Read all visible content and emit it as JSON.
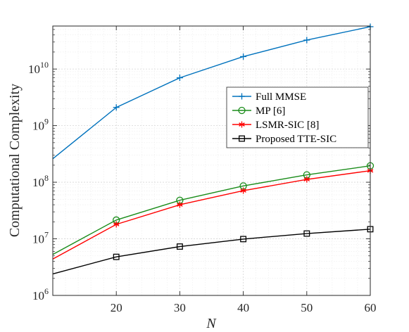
{
  "chart_data": {
    "type": "line",
    "xlabel": "N",
    "ylabel": "Computational Complexity",
    "xlim": [
      10,
      60
    ],
    "ylim_log10": [
      6,
      10.76
    ],
    "yscale": "log",
    "xticks": [
      20,
      30,
      40,
      50,
      60
    ],
    "xtick_labels": [
      "20",
      "30",
      "40",
      "50",
      "60"
    ],
    "yticks_log10": [
      6,
      7,
      8,
      9,
      10
    ],
    "ytick_labels": [
      {
        "base": "10",
        "exp": "6"
      },
      {
        "base": "10",
        "exp": "7"
      },
      {
        "base": "10",
        "exp": "8"
      },
      {
        "base": "10",
        "exp": "9"
      },
      {
        "base": "10",
        "exp": "10"
      }
    ],
    "grid": true,
    "legend_position": "center-right",
    "series": [
      {
        "name": "Full MMSE",
        "color": "#0072BD",
        "marker": "plus",
        "x": [
          10,
          20,
          30,
          40,
          50,
          60
        ],
        "y": [
          260000000.0,
          2100000000.0,
          7000000000.0,
          16600000000.0,
          32500000000.0,
          56000000000.0
        ]
      },
      {
        "name": "MP [6]",
        "color": "#1A8C1A",
        "marker": "circle",
        "x": [
          10,
          20,
          30,
          40,
          50,
          60
        ],
        "y": [
          5300000.0,
          21500000.0,
          48000000.0,
          86000000.0,
          135000000.0,
          195000000.0
        ]
      },
      {
        "name": "LSMR-SIC [8]",
        "color": "#FF0000",
        "marker": "asterisk",
        "x": [
          10,
          20,
          30,
          40,
          50,
          60
        ],
        "y": [
          4400000.0,
          18000000.0,
          40000000.0,
          71000000.0,
          112000000.0,
          160000000.0
        ]
      },
      {
        "name": "Proposed TTE-SIC",
        "color": "#000000",
        "marker": "square",
        "x": [
          10,
          20,
          30,
          40,
          50,
          60
        ],
        "y": [
          2400000.0,
          4800000.0,
          7300000.0,
          9900000.0,
          12400000.0,
          14800000.0
        ]
      }
    ]
  }
}
